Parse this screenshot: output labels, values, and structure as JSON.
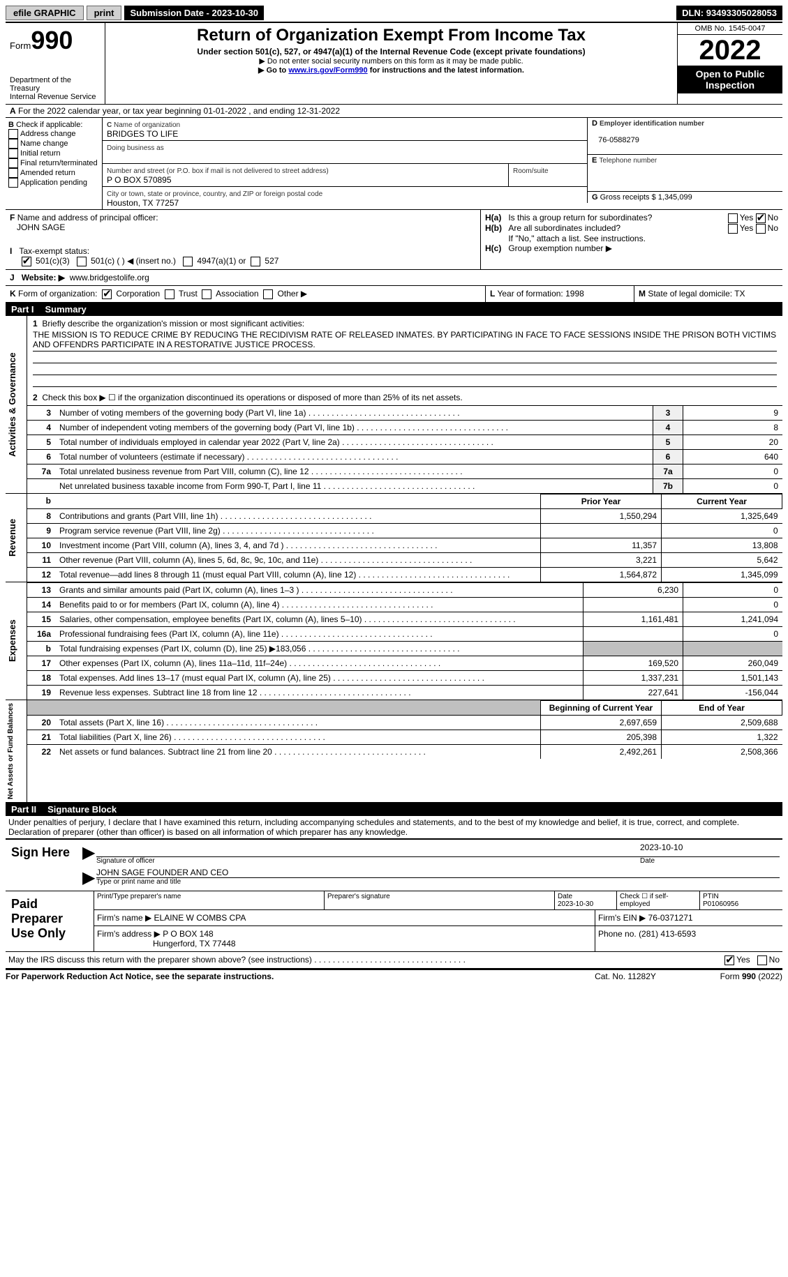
{
  "topbar": {
    "efile": "efile GRAPHIC",
    "print": "print",
    "subdate_label": "Submission Date - ",
    "subdate": "2023-10-30",
    "dln_label": "DLN: ",
    "dln": "93493305028053"
  },
  "header": {
    "form_word": "Form",
    "form_num": "990",
    "dept": "Department of the Treasury",
    "irs": "Internal Revenue Service",
    "title": "Return of Organization Exempt From Income Tax",
    "sub": "Under section 501(c), 527, or 4947(a)(1) of the Internal Revenue Code (except private foundations)",
    "note1": "▶ Do not enter social security numbers on this form as it may be made public.",
    "note2_pre": "▶ Go to ",
    "note2_link": "www.irs.gov/Form990",
    "note2_post": " for instructions and the latest information.",
    "omb": "OMB No. 1545-0047",
    "year": "2022",
    "open": "Open to Public Inspection"
  },
  "a": {
    "line": "For the 2022 calendar year, or tax year beginning 01-01-2022   , and ending 12-31-2022"
  },
  "b": {
    "label": "Check if applicable:",
    "opts": [
      "Address change",
      "Name change",
      "Initial return",
      "Final return/terminated",
      "Amended return",
      "Application pending"
    ]
  },
  "c": {
    "name_label": "Name of organization",
    "name": "BRIDGES TO LIFE",
    "dba_label": "Doing business as",
    "addr_label": "Number and street (or P.O. box if mail is not delivered to street address)",
    "room_label": "Room/suite",
    "addr": "P O BOX 570895",
    "city_label": "City or town, state or province, country, and ZIP or foreign postal code",
    "city": "Houston, TX  77257"
  },
  "d": {
    "label": "Employer identification number",
    "val": "76-0588279"
  },
  "e": {
    "label": "Telephone number",
    "val": ""
  },
  "g": {
    "label": "Gross receipts $ ",
    "val": "1,345,099"
  },
  "f": {
    "label": "Name and address of principal officer:",
    "val": "JOHN SAGE"
  },
  "h": {
    "a": "Is this a group return for subordinates?",
    "b": "Are all subordinates included?",
    "b_note": "If \"No,\" attach a list. See instructions.",
    "c": "Group exemption number ▶"
  },
  "i": {
    "label": "Tax-exempt status:",
    "opts": [
      "501(c)(3)",
      "501(c) (  ) ◀ (insert no.)",
      "4947(a)(1) or",
      "527"
    ]
  },
  "j": {
    "label": "Website: ▶",
    "val": "www.bridgestolife.org"
  },
  "k": {
    "label": "Form of organization:",
    "opts": [
      "Corporation",
      "Trust",
      "Association",
      "Other ▶"
    ]
  },
  "l": {
    "label": "Year of formation: ",
    "val": "1998"
  },
  "m": {
    "label": "State of legal domicile: ",
    "val": "TX"
  },
  "part1": {
    "num": "Part I",
    "title": "Summary"
  },
  "sections": {
    "s1": "Activities & Governance",
    "s2": "Revenue",
    "s3": "Expenses",
    "s4": "Net Assets or Fund Balances"
  },
  "q1": {
    "label": "Briefly describe the organization's mission or most significant activities:",
    "text": "THE MISSION IS TO REDUCE CRIME BY REDUCING THE RECIDIVISM RATE OF RELEASED INMATES. BY PARTICIPATING IN FACE TO FACE SESSIONS INSIDE THE PRISON BOTH VICTIMS AND OFFENDRS PARTICIPATE IN A RESTORATIVE JUSTICE PROCESS."
  },
  "q2": "Check this box ▶ ☐ if the organization discontinued its operations or disposed of more than 25% of its net assets.",
  "cols": {
    "prior": "Prior Year",
    "current": "Current Year",
    "begin": "Beginning of Current Year",
    "end": "End of Year"
  },
  "rows": [
    {
      "n": "3",
      "d": "Number of voting members of the governing body (Part VI, line 1a)",
      "box": "3",
      "v": "9"
    },
    {
      "n": "4",
      "d": "Number of independent voting members of the governing body (Part VI, line 1b)",
      "box": "4",
      "v": "8"
    },
    {
      "n": "5",
      "d": "Total number of individuals employed in calendar year 2022 (Part V, line 2a)",
      "box": "5",
      "v": "20"
    },
    {
      "n": "6",
      "d": "Total number of volunteers (estimate if necessary)",
      "box": "6",
      "v": "640"
    },
    {
      "n": "7a",
      "d": "Total unrelated business revenue from Part VIII, column (C), line 12",
      "box": "7a",
      "v": "0"
    },
    {
      "n": "",
      "d": "Net unrelated business taxable income from Form 990-T, Part I, line 11",
      "box": "7b",
      "v": "0"
    }
  ],
  "rev": [
    {
      "n": "8",
      "d": "Contributions and grants (Part VIII, line 1h)",
      "p": "1,550,294",
      "c": "1,325,649"
    },
    {
      "n": "9",
      "d": "Program service revenue (Part VIII, line 2g)",
      "p": "",
      "c": "0"
    },
    {
      "n": "10",
      "d": "Investment income (Part VIII, column (A), lines 3, 4, and 7d )",
      "p": "11,357",
      "c": "13,808"
    },
    {
      "n": "11",
      "d": "Other revenue (Part VIII, column (A), lines 5, 6d, 8c, 9c, 10c, and 11e)",
      "p": "3,221",
      "c": "5,642"
    },
    {
      "n": "12",
      "d": "Total revenue—add lines 8 through 11 (must equal Part VIII, column (A), line 12)",
      "p": "1,564,872",
      "c": "1,345,099"
    }
  ],
  "exp": [
    {
      "n": "13",
      "d": "Grants and similar amounts paid (Part IX, column (A), lines 1–3 )",
      "p": "6,230",
      "c": "0"
    },
    {
      "n": "14",
      "d": "Benefits paid to or for members (Part IX, column (A), line 4)",
      "p": "",
      "c": "0"
    },
    {
      "n": "15",
      "d": "Salaries, other compensation, employee benefits (Part IX, column (A), lines 5–10)",
      "p": "1,161,481",
      "c": "1,241,094"
    },
    {
      "n": "16a",
      "d": "Professional fundraising fees (Part IX, column (A), line 11e)",
      "p": "",
      "c": "0"
    },
    {
      "n": "b",
      "d": "Total fundraising expenses (Part IX, column (D), line 25) ▶183,056",
      "p": "GRAY",
      "c": "GRAY"
    },
    {
      "n": "17",
      "d": "Other expenses (Part IX, column (A), lines 11a–11d, 11f–24e)",
      "p": "169,520",
      "c": "260,049"
    },
    {
      "n": "18",
      "d": "Total expenses. Add lines 13–17 (must equal Part IX, column (A), line 25)",
      "p": "1,337,231",
      "c": "1,501,143"
    },
    {
      "n": "19",
      "d": "Revenue less expenses. Subtract line 18 from line 12",
      "p": "227,641",
      "c": "-156,044"
    }
  ],
  "net": [
    {
      "n": "20",
      "d": "Total assets (Part X, line 16)",
      "p": "2,697,659",
      "c": "2,509,688"
    },
    {
      "n": "21",
      "d": "Total liabilities (Part X, line 26)",
      "p": "205,398",
      "c": "1,322"
    },
    {
      "n": "22",
      "d": "Net assets or fund balances. Subtract line 21 from line 20",
      "p": "2,492,261",
      "c": "2,508,366"
    }
  ],
  "part2": {
    "num": "Part II",
    "title": "Signature Block"
  },
  "sig": {
    "decl": "Under penalties of perjury, I declare that I have examined this return, including accompanying schedules and statements, and to the best of my knowledge and belief, it is true, correct, and complete. Declaration of preparer (other than officer) is based on all information of which preparer has any knowledge.",
    "here": "Sign Here",
    "sigoff": "Signature of officer",
    "date": "Date",
    "sigdate": "2023-10-10",
    "name": "JOHN SAGE  FOUNDER AND CEO",
    "typeprint": "Type or print name and title"
  },
  "paid": {
    "label": "Paid Preparer Use Only",
    "h1": "Print/Type preparer's name",
    "h2": "Preparer's signature",
    "h3": "Date",
    "h3v": "2023-10-30",
    "h4": "Check ☐ if self-employed",
    "h5": "PTIN",
    "h5v": "P01060956",
    "firm_label": "Firm's name    ▶ ",
    "firm": "ELAINE W COMBS CPA",
    "ein_label": "Firm's EIN ▶ ",
    "ein": "76-0371271",
    "addr_label": "Firm's address ▶ ",
    "addr1": "P O BOX 148",
    "addr2": "Hungerford, TX  77448",
    "phone_label": "Phone no. ",
    "phone": "(281) 413-6593"
  },
  "discuss": "May the IRS discuss this return with the preparer shown above? (see instructions)",
  "footer": {
    "left": "For Paperwork Reduction Act Notice, see the separate instructions.",
    "mid": "Cat. No. 11282Y",
    "right": "Form 990 (2022)"
  }
}
